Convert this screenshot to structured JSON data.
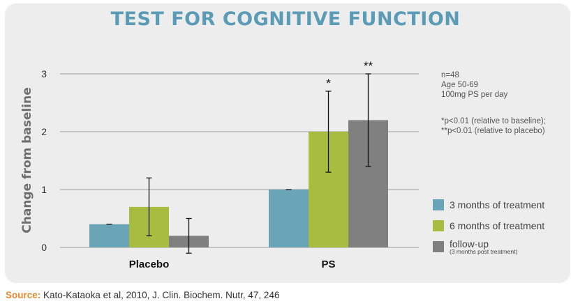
{
  "colors": {
    "title": "#5b9bb5",
    "series": [
      "#6aa5b7",
      "#a8bd3f",
      "#808080"
    ],
    "source_label": "#e58a2e"
  },
  "chart_data": {
    "type": "bar",
    "title": "TEST FOR COGNITIVE FUNCTION",
    "xlabel": "",
    "ylabel": "Change from baseline",
    "ylim": [
      0,
      3
    ],
    "yticks": [
      "0",
      "1",
      "2",
      "3"
    ],
    "grid": true,
    "categories": [
      "Placebo",
      "PS"
    ],
    "series": [
      {
        "name": "3 months of treatment",
        "values": [
          0.4,
          1.0
        ],
        "error": [
          0,
          0
        ]
      },
      {
        "name": "6 months of treatment",
        "values": [
          0.7,
          2.0
        ],
        "error": [
          0.5,
          0.7
        ]
      },
      {
        "name": "follow-up",
        "sub": "(3 months post treatment)",
        "values": [
          0.2,
          2.2
        ],
        "error": [
          0.3,
          0.8
        ]
      }
    ],
    "significance": [
      {
        "category": 1,
        "series": 1,
        "label": "*"
      },
      {
        "category": 1,
        "series": 2,
        "label": "**"
      }
    ],
    "legend_position": "bottom-right"
  },
  "notes": {
    "line1": "n=48",
    "line2": "Age 50-69",
    "line3": "100mg PS per day",
    "line4": "*p<0.01 (relative to baseline);",
    "line5": "**p<0.01 (relative to placebo)"
  },
  "source": {
    "label": "Source:",
    "text": " Kato-Kataoka et al, 2010, J. Clin. Biochem. Nutr, 47, 246"
  }
}
